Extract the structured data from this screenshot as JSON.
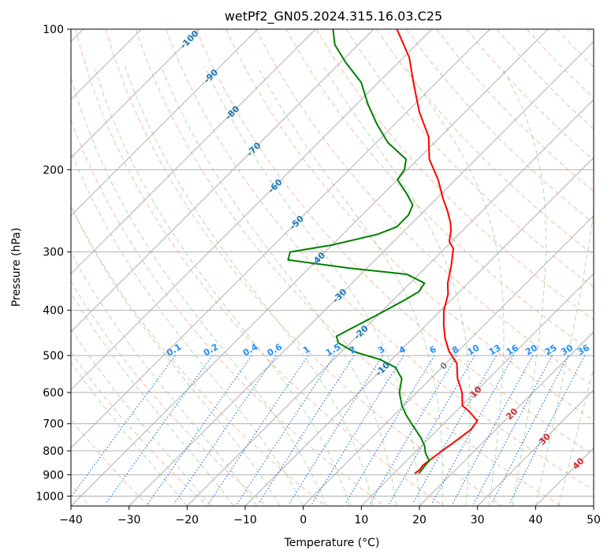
{
  "chart_data": {
    "type": "line",
    "subtype": "skew-t log-p diagram",
    "title": "wetPf2_GN05.2024.315.16.03.C25",
    "xlabel": "Temperature (°C)",
    "ylabel": "Pressure (hPa)",
    "xlim": [
      -40,
      50
    ],
    "ylim": [
      1050,
      100
    ],
    "y_scale": "log",
    "grid": true,
    "x_ticks": [
      -40,
      -30,
      -20,
      -10,
      0,
      10,
      20,
      30,
      40,
      50
    ],
    "x_tick_labels": [
      "−40",
      "−30",
      "−20",
      "−10",
      "0",
      "10",
      "20",
      "30",
      "40",
      "50"
    ],
    "y_ticks": [
      100,
      200,
      300,
      400,
      500,
      600,
      700,
      800,
      900,
      1000
    ],
    "y_tick_labels": [
      "100",
      "200",
      "300",
      "400",
      "500",
      "600",
      "700",
      "800",
      "900",
      "1000"
    ],
    "isotherm_labels": [
      "-100",
      "-90",
      "-80",
      "-70",
      "-60",
      "-50",
      "-40",
      "-30",
      "-20",
      "-10",
      "0",
      "10",
      "20",
      "30",
      "40"
    ],
    "mixing_ratio_labels": [
      "0.1",
      "0.2",
      "0.4",
      "0.6",
      "1",
      "1.5",
      "2",
      "3",
      "4",
      "6",
      "8",
      "10",
      "13",
      "16",
      "20",
      "25",
      "30",
      "36"
    ],
    "colors": {
      "temperature": "#ff0000",
      "dewpoint": "#008000",
      "isotherm": "#b0b0b0",
      "dry_adiabat": "#f4a582",
      "moist_adiabat": "#98cf98",
      "mixing_ratio": "#1f77e4",
      "isotherm_label_cold": "#1f77b4",
      "isotherm_label_warm": "#d62728",
      "isotherm_label_zero": "#808080",
      "mixing_ratio_label": "#1f8fff"
    },
    "series": [
      {
        "name": "Temperature",
        "points": [
          {
            "p": 895,
            "t": 13.6
          },
          {
            "p": 880,
            "t": 13.8
          },
          {
            "p": 860,
            "t": 13.6
          },
          {
            "p": 830,
            "t": 14.0
          },
          {
            "p": 800,
            "t": 14.4
          },
          {
            "p": 760,
            "t": 15.1
          },
          {
            "p": 720,
            "t": 15.7
          },
          {
            "p": 690,
            "t": 15.3
          },
          {
            "p": 660,
            "t": 12.4
          },
          {
            "p": 640,
            "t": 10.1
          },
          {
            "p": 600,
            "t": 7.8
          },
          {
            "p": 560,
            "t": 4.6
          },
          {
            "p": 520,
            "t": 1.9
          },
          {
            "p": 490,
            "t": -1.5
          },
          {
            "p": 460,
            "t": -4.4
          },
          {
            "p": 430,
            "t": -7.0
          },
          {
            "p": 400,
            "t": -9.5
          },
          {
            "p": 370,
            "t": -11.5
          },
          {
            "p": 350,
            "t": -13.5
          },
          {
            "p": 320,
            "t": -16.0
          },
          {
            "p": 295,
            "t": -18.5
          },
          {
            "p": 285,
            "t": -20.4
          },
          {
            "p": 270,
            "t": -22.0
          },
          {
            "p": 260,
            "t": -23.4
          },
          {
            "p": 245,
            "t": -26.0
          },
          {
            "p": 230,
            "t": -29.0
          },
          {
            "p": 210,
            "t": -33.0
          },
          {
            "p": 190,
            "t": -38.0
          },
          {
            "p": 170,
            "t": -42.0
          },
          {
            "p": 150,
            "t": -48.0
          },
          {
            "p": 130,
            "t": -54.0
          },
          {
            "p": 115,
            "t": -59.0
          },
          {
            "p": 100,
            "t": -66.0
          }
        ]
      },
      {
        "name": "Dewpoint",
        "points": [
          {
            "p": 895,
            "t": 14.3
          },
          {
            "p": 880,
            "t": 14.2
          },
          {
            "p": 860,
            "t": 14.0
          },
          {
            "p": 840,
            "t": 13.9
          },
          {
            "p": 810,
            "t": 12.0
          },
          {
            "p": 780,
            "t": 10.5
          },
          {
            "p": 750,
            "t": 8.5
          },
          {
            "p": 700,
            "t": 4.5
          },
          {
            "p": 670,
            "t": 2.0
          },
          {
            "p": 640,
            "t": -0.3
          },
          {
            "p": 600,
            "t": -3.0
          },
          {
            "p": 560,
            "t": -5.0
          },
          {
            "p": 530,
            "t": -8.0
          },
          {
            "p": 510,
            "t": -12.0
          },
          {
            "p": 490,
            "t": -18.0
          },
          {
            "p": 470,
            "t": -22.0
          },
          {
            "p": 455,
            "t": -23.5
          },
          {
            "p": 440,
            "t": -22.5
          },
          {
            "p": 420,
            "t": -21.0
          },
          {
            "p": 400,
            "t": -19.5
          },
          {
            "p": 380,
            "t": -18.0
          },
          {
            "p": 365,
            "t": -17.0
          },
          {
            "p": 350,
            "t": -17.5
          },
          {
            "p": 335,
            "t": -22.0
          },
          {
            "p": 325,
            "t": -33.0
          },
          {
            "p": 312,
            "t": -45.0
          },
          {
            "p": 300,
            "t": -46.0
          },
          {
            "p": 290,
            "t": -40.0
          },
          {
            "p": 275,
            "t": -34.0
          },
          {
            "p": 265,
            "t": -32.0
          },
          {
            "p": 250,
            "t": -32.0
          },
          {
            "p": 238,
            "t": -33.0
          },
          {
            "p": 225,
            "t": -36.0
          },
          {
            "p": 210,
            "t": -40.0
          },
          {
            "p": 200,
            "t": -40.5
          },
          {
            "p": 190,
            "t": -42.0
          },
          {
            "p": 175,
            "t": -48.0
          },
          {
            "p": 160,
            "t": -53.0
          },
          {
            "p": 145,
            "t": -58.0
          },
          {
            "p": 130,
            "t": -63.0
          },
          {
            "p": 118,
            "t": -69.0
          },
          {
            "p": 108,
            "t": -74.0
          },
          {
            "p": 100,
            "t": -77.0
          }
        ]
      }
    ]
  }
}
